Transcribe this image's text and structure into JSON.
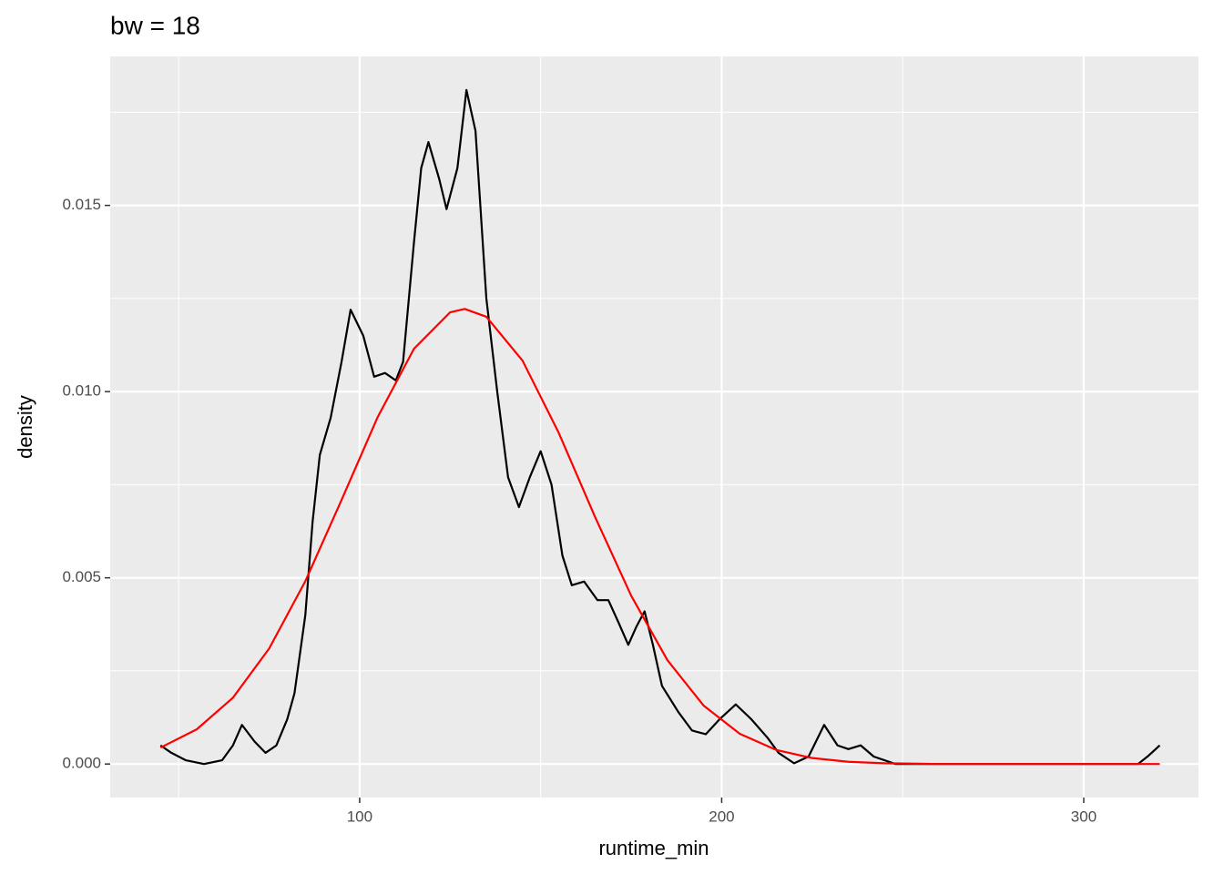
{
  "chart_data": {
    "type": "line",
    "title": "bw = 18",
    "x_label": "runtime_min",
    "y_label": "density",
    "xlim": [
      31.1,
      331.7
    ],
    "ylim": [
      -0.0009,
      0.019
    ],
    "xticks": [
      100,
      200,
      300
    ],
    "xminor": [
      50,
      150,
      250
    ],
    "yticks": [
      {
        "value": 0,
        "label": "0.000"
      },
      0.005,
      {
        "value": 0.01,
        "label": "0.010"
      },
      0.015
    ],
    "yminor": [
      0.0025,
      0.0075,
      0.0125,
      0.0175
    ],
    "grid": true,
    "series": [
      {
        "color": "#000000",
        "x": [
          45,
          48,
          52,
          57,
          62,
          65,
          67.5,
          71,
          74,
          77,
          80,
          82,
          85,
          87,
          89,
          92,
          95,
          97.5,
          101,
          104,
          107,
          110,
          112,
          115,
          117,
          119,
          122,
          124,
          127,
          129.5,
          132,
          135,
          138,
          141,
          144,
          147,
          150,
          153,
          156,
          158.6,
          162,
          165.7,
          168.7,
          171.5,
          174.2,
          176.5,
          178.7,
          181,
          183.5,
          188,
          191.8,
          195.6,
          199.4,
          203.9,
          208.2,
          212.7,
          215.7,
          220,
          224,
          228.3,
          232,
          235,
          238.4,
          242,
          248,
          260,
          280,
          300,
          315,
          317.6,
          321
        ],
        "values": [
          0.0005,
          0.0003,
          0.0001,
          0,
          0.0001,
          0.0005,
          0.00105,
          0.0006,
          0.0003,
          0.0005,
          0.0012,
          0.0019,
          0.004,
          0.0065,
          0.0083,
          0.0093,
          0.0108,
          0.0122,
          0.0115,
          0.0104,
          0.0105,
          0.0103,
          0.0108,
          0.014,
          0.016,
          0.0167,
          0.0157,
          0.0149,
          0.016,
          0.0181,
          0.017,
          0.0125,
          0.01,
          0.0077,
          0.0069,
          0.0077,
          0.0084,
          0.0075,
          0.0056,
          0.0048,
          0.0049,
          0.0044,
          0.0044,
          0.0038,
          0.0032,
          0.0037,
          0.0041,
          0.0032,
          0.0021,
          0.0014,
          0.0009,
          0.0008,
          0.0012,
          0.0016,
          0.0012,
          0.0007,
          0.0003,
          2e-05,
          0.0002,
          0.00105,
          0.0005,
          0.0004,
          0.0005,
          0.0002,
          0,
          0,
          0,
          0,
          0,
          0.0002,
          0.0005
        ]
      },
      {
        "color": "#ff0000",
        "x": [
          45,
          55,
          65,
          75,
          85,
          95,
          105,
          115,
          125,
          129,
          135,
          145,
          155,
          165,
          175,
          185,
          195,
          205,
          215,
          225,
          235,
          245,
          260,
          280,
          300,
          321
        ],
        "values": [
          0.00044,
          0.00093,
          0.00178,
          0.0031,
          0.00491,
          0.00709,
          0.00932,
          0.01115,
          0.01213,
          0.01222,
          0.01201,
          0.01083,
          0.00889,
          0.00664,
          0.00452,
          0.00279,
          0.00157,
          0.00081,
          0.00038,
          0.00016,
          6e-05,
          2e-05,
          0,
          0,
          0,
          0
        ]
      }
    ]
  }
}
